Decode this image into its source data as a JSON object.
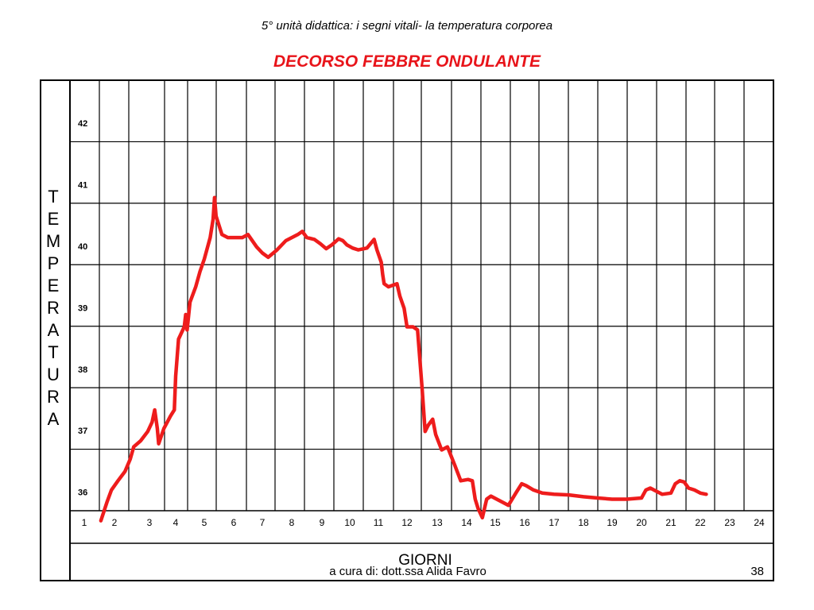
{
  "header": {
    "subtitle": "5° unità didattica: i segni vitali- la temperatura corporea",
    "title": "DECORSO FEBBRE ONDULANTE"
  },
  "footer": {
    "credit": "a cura di: dott.ssa Alida Favro",
    "page_number": "38"
  },
  "colors": {
    "curve": "#ee1c1c",
    "title": "#e8141a",
    "grid": "#000000"
  },
  "chart_data": {
    "type": "line",
    "title": "DECORSO FEBBRE ONDULANTE",
    "xlabel": "GIORNI",
    "ylabel_letters": [
      "T",
      "E",
      "M",
      "P",
      "E",
      "R",
      "A",
      "T",
      "U",
      "R",
      "A"
    ],
    "x_ticks": [
      "1",
      "2",
      "3",
      "4",
      "5",
      "6",
      "7",
      "8",
      "9",
      "10",
      "11",
      "12",
      "13",
      "14",
      "15",
      "16",
      "17",
      "18",
      "19",
      "20",
      "21",
      "22",
      "23",
      "24"
    ],
    "y_ticks": [
      "42",
      "41",
      "40",
      "39",
      "38",
      "37",
      "36"
    ],
    "xlim": [
      1,
      24.5
    ],
    "ylim": [
      35.75,
      42.5
    ],
    "grid": true,
    "series": [
      {
        "values": [
          [
            1.55,
            35.85
          ],
          [
            1.75,
            36.15
          ],
          [
            1.9,
            36.35
          ],
          [
            2.1,
            36.5
          ],
          [
            2.3,
            36.65
          ],
          [
            2.45,
            36.85
          ],
          [
            2.55,
            37.05
          ],
          [
            2.75,
            37.15
          ],
          [
            2.95,
            37.3
          ],
          [
            3.1,
            37.45
          ],
          [
            3.2,
            37.65
          ],
          [
            3.3,
            37.35
          ],
          [
            3.35,
            37.1
          ],
          [
            3.55,
            37.35
          ],
          [
            3.8,
            37.55
          ],
          [
            3.95,
            37.65
          ],
          [
            4.0,
            38.2
          ],
          [
            4.1,
            38.8
          ],
          [
            4.3,
            39.0
          ],
          [
            4.35,
            39.2
          ],
          [
            4.4,
            38.95
          ],
          [
            4.5,
            39.4
          ],
          [
            4.7,
            39.65
          ],
          [
            4.85,
            39.9
          ],
          [
            5.0,
            40.1
          ],
          [
            5.2,
            40.45
          ],
          [
            5.3,
            40.75
          ],
          [
            5.35,
            41.1
          ],
          [
            5.4,
            40.8
          ],
          [
            5.6,
            40.5
          ],
          [
            5.8,
            40.45
          ],
          [
            6.0,
            40.45
          ],
          [
            6.3,
            40.45
          ],
          [
            6.5,
            40.5
          ],
          [
            6.8,
            40.3
          ],
          [
            7.0,
            40.2
          ],
          [
            7.2,
            40.13
          ],
          [
            7.5,
            40.25
          ],
          [
            7.8,
            40.4
          ],
          [
            8.2,
            40.5
          ],
          [
            8.35,
            40.55
          ],
          [
            8.5,
            40.45
          ],
          [
            8.75,
            40.42
          ],
          [
            8.95,
            40.35
          ],
          [
            9.15,
            40.27
          ],
          [
            9.35,
            40.33
          ],
          [
            9.6,
            40.43
          ],
          [
            9.75,
            40.4
          ],
          [
            9.9,
            40.33
          ],
          [
            10.1,
            40.28
          ],
          [
            10.3,
            40.25
          ],
          [
            10.6,
            40.28
          ],
          [
            10.85,
            40.42
          ],
          [
            10.95,
            40.25
          ],
          [
            11.1,
            40.05
          ],
          [
            11.15,
            39.85
          ],
          [
            11.2,
            39.7
          ],
          [
            11.35,
            39.65
          ],
          [
            11.65,
            39.7
          ],
          [
            11.75,
            39.5
          ],
          [
            11.9,
            39.3
          ],
          [
            12.0,
            39.0
          ],
          [
            12.2,
            39.0
          ],
          [
            12.35,
            38.95
          ],
          [
            12.5,
            38.0
          ],
          [
            12.6,
            37.3
          ],
          [
            12.7,
            37.4
          ],
          [
            12.85,
            37.5
          ],
          [
            12.95,
            37.25
          ],
          [
            13.15,
            37.0
          ],
          [
            13.35,
            37.05
          ],
          [
            13.6,
            36.75
          ],
          [
            13.8,
            36.5
          ],
          [
            14.05,
            36.52
          ],
          [
            14.2,
            36.5
          ],
          [
            14.3,
            36.2
          ],
          [
            14.4,
            36.05
          ],
          [
            14.55,
            35.9
          ],
          [
            14.7,
            36.2
          ],
          [
            14.85,
            36.25
          ],
          [
            15.05,
            36.2
          ],
          [
            15.25,
            36.15
          ],
          [
            15.45,
            36.1
          ],
          [
            15.7,
            36.3
          ],
          [
            15.9,
            36.45
          ],
          [
            16.05,
            36.42
          ],
          [
            16.3,
            36.35
          ],
          [
            16.6,
            36.3
          ],
          [
            17.0,
            36.28
          ],
          [
            17.5,
            36.27
          ],
          [
            18.0,
            36.24
          ],
          [
            18.5,
            36.22
          ],
          [
            19.0,
            36.2
          ],
          [
            19.5,
            36.2
          ],
          [
            20.0,
            36.22
          ],
          [
            20.15,
            36.35
          ],
          [
            20.3,
            36.38
          ],
          [
            20.5,
            36.33
          ],
          [
            20.7,
            36.28
          ],
          [
            21.0,
            36.3
          ],
          [
            21.15,
            36.45
          ],
          [
            21.3,
            36.5
          ],
          [
            21.45,
            36.48
          ],
          [
            21.6,
            36.38
          ],
          [
            21.8,
            36.35
          ],
          [
            22.0,
            36.3
          ],
          [
            22.2,
            36.28
          ]
        ]
      }
    ]
  }
}
